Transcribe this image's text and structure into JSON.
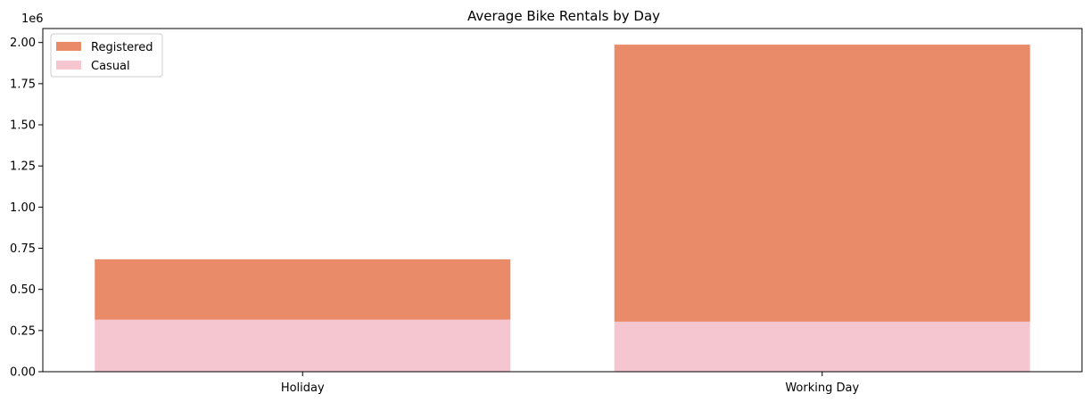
{
  "chart_data": {
    "type": "bar",
    "stacked": true,
    "title": "Average Bike Rentals by Day",
    "xlabel": "",
    "ylabel": "",
    "categories": [
      "Holiday",
      "Working Day"
    ],
    "series": [
      {
        "name": "Casual",
        "values": [
          316000,
          304000
        ]
      },
      {
        "name": "Registered",
        "values": [
          367000,
          1683000
        ]
      }
    ],
    "ylim": [
      0,
      2085000
    ],
    "y_ticks": [
      0,
      250000,
      500000,
      750000,
      1000000,
      1250000,
      1500000,
      1750000,
      2000000
    ],
    "y_tick_labels": [
      "0.00",
      "0.25",
      "0.50",
      "0.75",
      "1.00",
      "1.25",
      "1.50",
      "1.75",
      "2.00"
    ],
    "y_offset_label": "1e6",
    "legend": {
      "position": "upper-left",
      "entries": [
        {
          "label": "Registered",
          "color": "#e98a68"
        },
        {
          "label": "Casual",
          "color": "#f6c6d0"
        }
      ]
    },
    "colors": {
      "Registered": "#e98a68",
      "Casual": "#f6c6d0"
    },
    "grid": false
  }
}
